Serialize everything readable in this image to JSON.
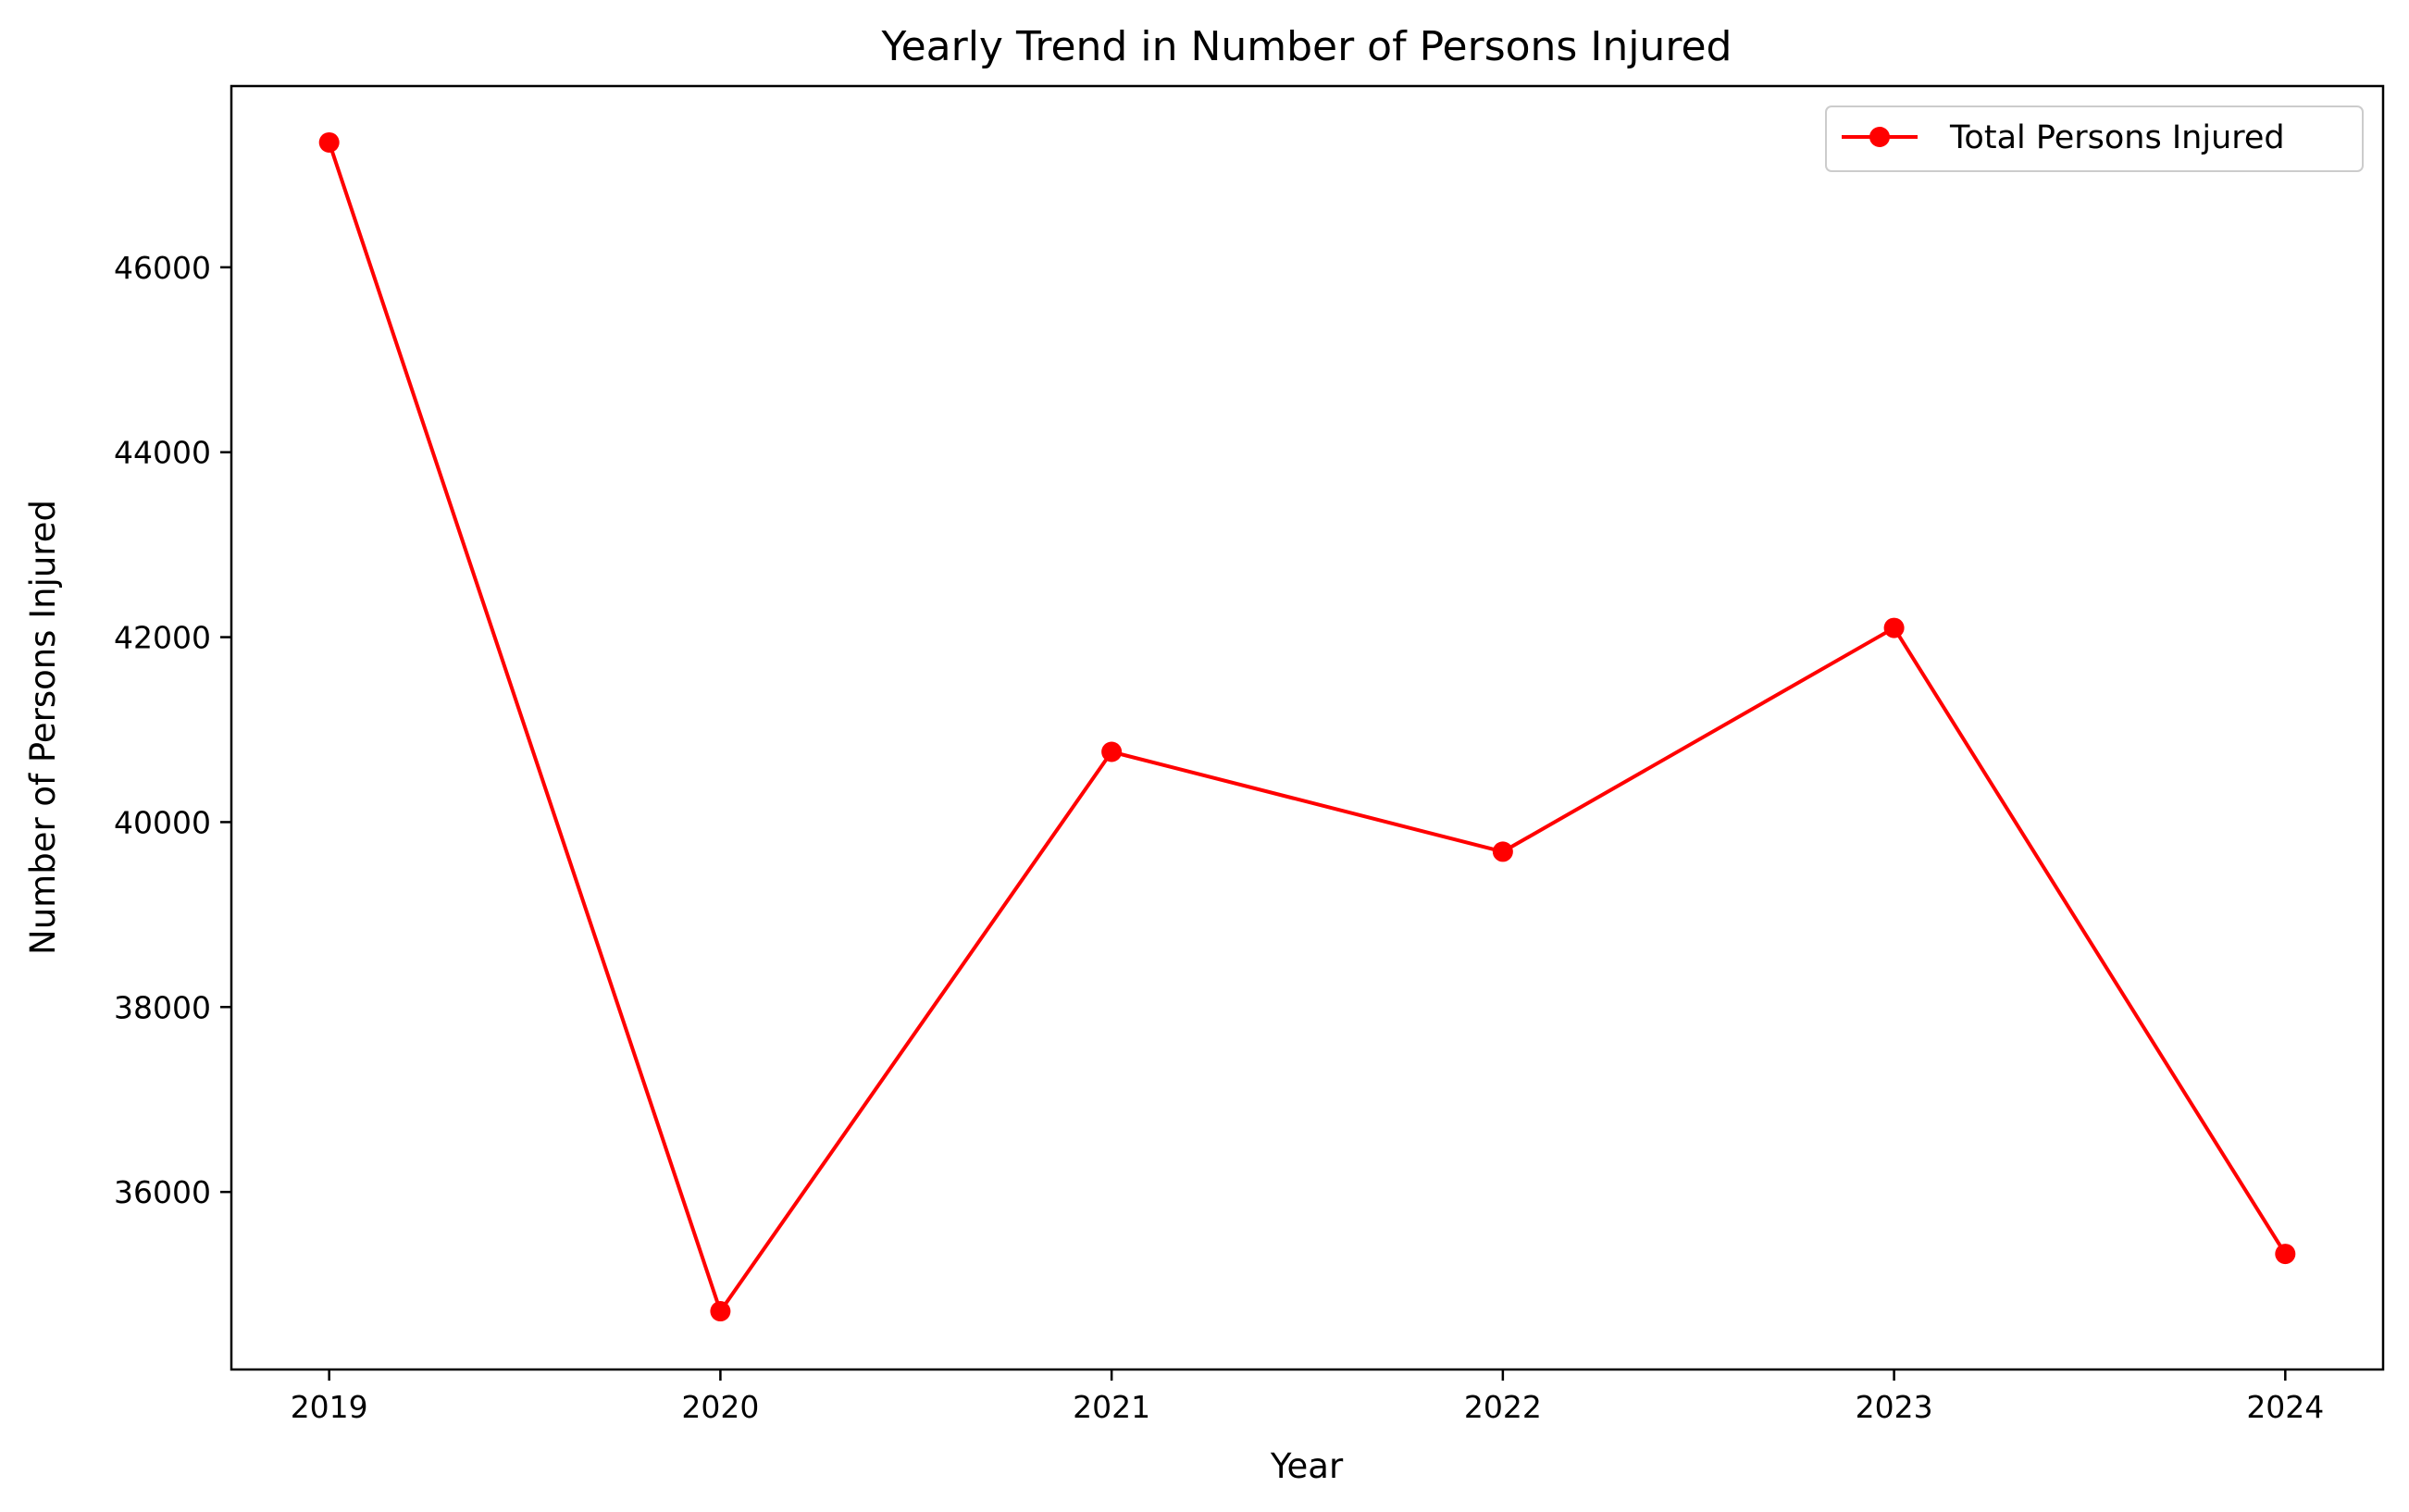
{
  "chart_data": {
    "type": "line",
    "title": "Yearly Trend in Number of Persons Injured",
    "xlabel": "Year",
    "ylabel": "Number of Persons Injured",
    "x": [
      2019,
      2020,
      2021,
      2022,
      2023,
      2024
    ],
    "x_tick_labels": [
      "2019",
      "2020",
      "2021",
      "2022",
      "2023",
      "2024"
    ],
    "xlim": [
      2018.75,
      2024.25
    ],
    "y_ticks": [
      36000,
      38000,
      40000,
      42000,
      44000,
      46000
    ],
    "y_tick_labels": [
      "36000",
      "38000",
      "40000",
      "42000",
      "44000",
      "46000"
    ],
    "ylim": [
      34080,
      47960
    ],
    "grid": false,
    "legend_position": "top-right",
    "series": [
      {
        "name": "Total Persons Injured",
        "color": "#ff0000",
        "marker": "circle",
        "values": [
          47350,
          34710,
          40760,
          39680,
          42100,
          35330
        ]
      }
    ]
  }
}
